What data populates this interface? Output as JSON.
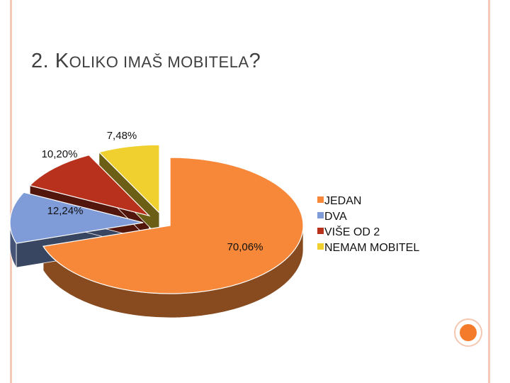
{
  "slide": {
    "title_prefix": "2. K",
    "title_small": "OLIKO IMAŠ MOBITELA",
    "title_suffix": "?"
  },
  "chart_data": {
    "type": "pie",
    "categories": [
      "JEDAN",
      "DVA",
      "VIŠE OD 2",
      "NEMAM MOBITEL"
    ],
    "values": [
      70.06,
      12.24,
      10.2,
      7.48
    ],
    "data_labels": [
      "70,06%",
      "12,24%",
      "10,20%",
      "7,48%"
    ],
    "colors": [
      "#f7883a",
      "#7f9bd8",
      "#b8311c",
      "#efd02e"
    ],
    "legend_position": "right",
    "exploded": true,
    "three_d": true
  }
}
